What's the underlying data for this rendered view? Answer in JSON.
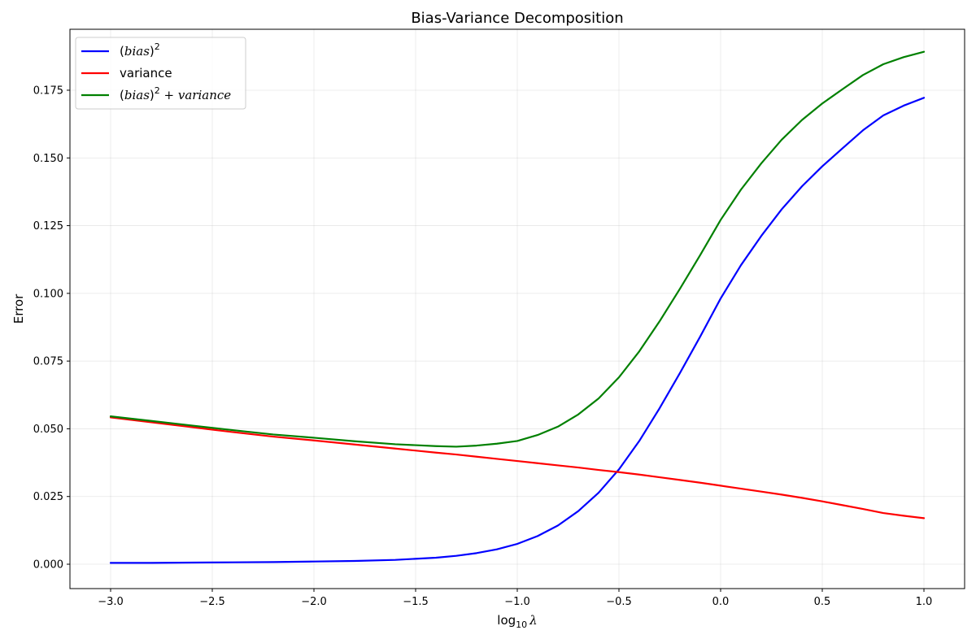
{
  "chart_data": {
    "type": "line",
    "title": "Bias-Variance Decomposition",
    "xlabel_prefix": "log",
    "xlabel_sub": "10",
    "xlabel_var": "λ",
    "ylabel": "Error",
    "xlim": [
      -3.2,
      1.2
    ],
    "ylim": [
      -0.009,
      0.1975
    ],
    "grid": true,
    "legend_position": "top-left",
    "xticks": [
      -3.0,
      -2.5,
      -2.0,
      -1.5,
      -1.0,
      -0.5,
      0.0,
      0.5,
      1.0
    ],
    "xtick_labels": [
      "−3.0",
      "−2.5",
      "−2.0",
      "−1.5",
      "−1.0",
      "−0.5",
      "0.0",
      "0.5",
      "1.0"
    ],
    "yticks": [
      0.0,
      0.025,
      0.05,
      0.075,
      0.1,
      0.125,
      0.15,
      0.175
    ],
    "ytick_labels": [
      "0.000",
      "0.025",
      "0.050",
      "0.075",
      "0.100",
      "0.125",
      "0.150",
      "0.175"
    ],
    "x": [
      -3.0,
      -2.8,
      -2.6,
      -2.4,
      -2.2,
      -2.0,
      -1.8,
      -1.6,
      -1.4,
      -1.3,
      -1.2,
      -1.1,
      -1.0,
      -0.9,
      -0.8,
      -0.7,
      -0.6,
      -0.5,
      -0.4,
      -0.3,
      -0.2,
      -0.1,
      0.0,
      0.1,
      0.2,
      0.3,
      0.4,
      0.5,
      0.6,
      0.7,
      0.8,
      0.9,
      1.0
    ],
    "series": [
      {
        "name": "(bias)²",
        "color": "#0000ff",
        "values": [
          0.0005,
          0.0005,
          0.0006,
          0.0007,
          0.0008,
          0.001,
          0.0012,
          0.0016,
          0.0024,
          0.0031,
          0.0041,
          0.0055,
          0.0075,
          0.0104,
          0.0143,
          0.0196,
          0.0264,
          0.035,
          0.0455,
          0.0576,
          0.0706,
          0.0841,
          0.0981,
          0.1104,
          0.1212,
          0.131,
          0.1395,
          0.1469,
          0.1536,
          0.1602,
          0.1657,
          0.1693,
          0.1722
        ]
      },
      {
        "name": "variance",
        "color": "#ff0000",
        "values": [
          0.0542,
          0.0524,
          0.0506,
          0.0488,
          0.0471,
          0.0457,
          0.0442,
          0.0427,
          0.0412,
          0.0405,
          0.0397,
          0.0389,
          0.0381,
          0.0373,
          0.0365,
          0.0357,
          0.0348,
          0.034,
          0.0331,
          0.0321,
          0.0311,
          0.0301,
          0.029,
          0.0279,
          0.0268,
          0.0257,
          0.0245,
          0.0232,
          0.0218,
          0.0204,
          0.0189,
          0.0179,
          0.017
        ]
      },
      {
        "name": "(bias)² + variance",
        "color": "#008000",
        "values": [
          0.0546,
          0.0529,
          0.0512,
          0.0495,
          0.0479,
          0.0467,
          0.0454,
          0.0443,
          0.0436,
          0.0434,
          0.0438,
          0.0445,
          0.0455,
          0.0477,
          0.0508,
          0.0553,
          0.0612,
          0.069,
          0.0786,
          0.0897,
          0.1017,
          0.1142,
          0.1271,
          0.1383,
          0.148,
          0.1567,
          0.164,
          0.1701,
          0.1754,
          0.1806,
          0.1846,
          0.1872,
          0.1892
        ]
      }
    ],
    "legend_labels": [
      {
        "pre": "(",
        "it": "bias",
        "post": ")",
        "sup": "2",
        "tail_it": ""
      },
      {
        "pre": "variance",
        "it": "",
        "post": "",
        "sup": "",
        "tail_it": ""
      },
      {
        "pre": "(",
        "it": "bias",
        "post": ")",
        "sup": "2",
        "tail_it": " + variance"
      }
    ]
  }
}
